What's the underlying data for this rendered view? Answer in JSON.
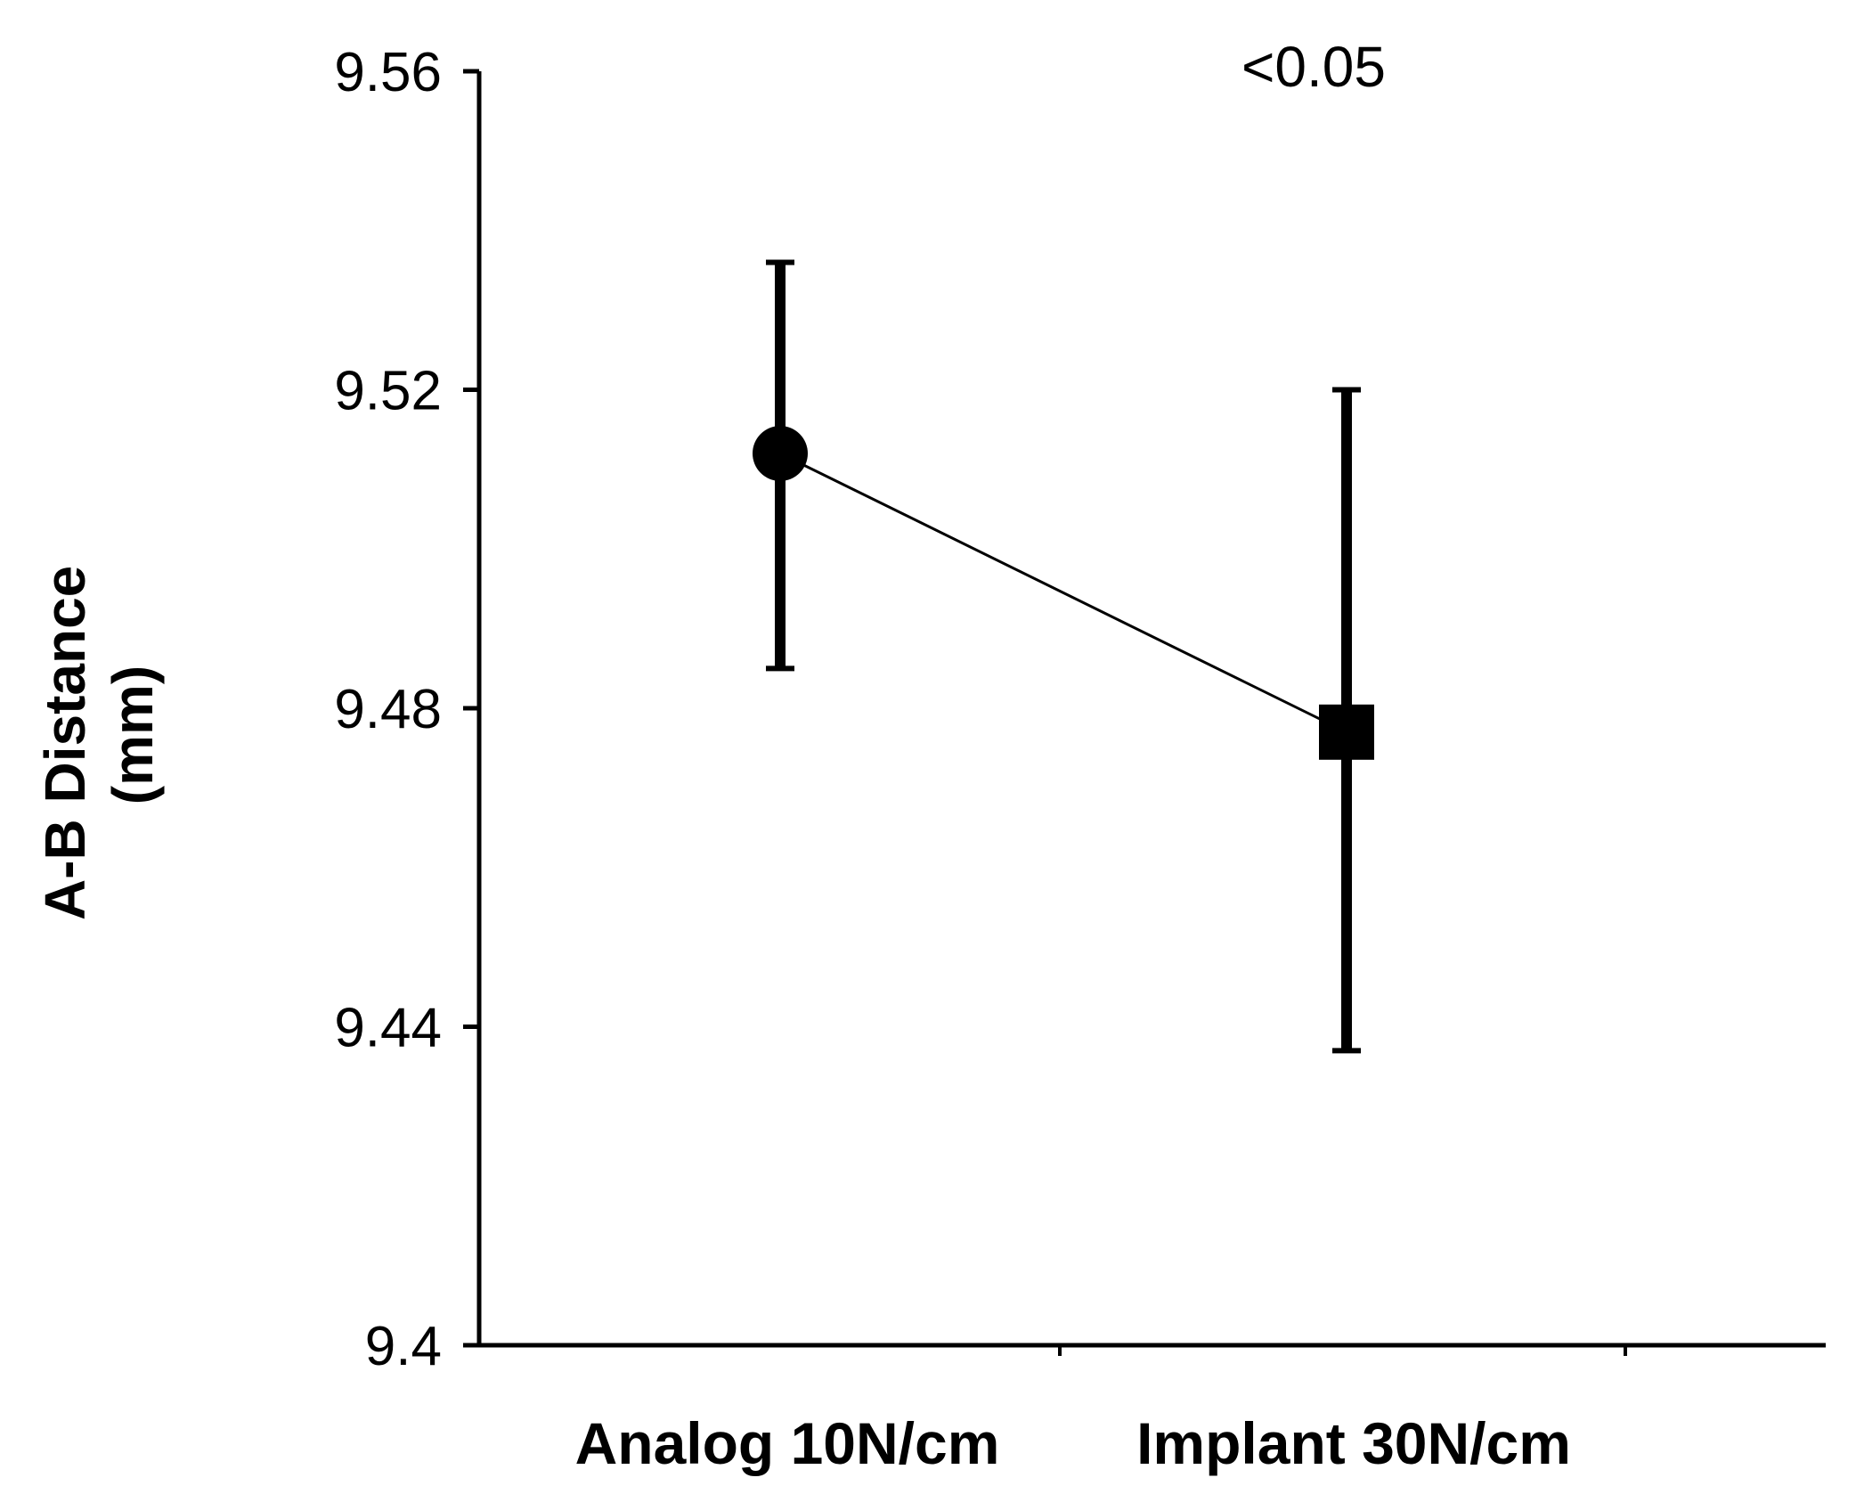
{
  "chart_data": {
    "type": "scatter",
    "title": "",
    "xlabel": "",
    "ylabel_lines": [
      "A-B Distance",
      "(mm)"
    ],
    "categories": [
      "Analog 10N/cm",
      "Implant 30N/cm"
    ],
    "ylim": [
      9.4,
      9.56
    ],
    "yticks": [
      "9.56",
      "9.52",
      "9.48",
      "9.44",
      "9.4"
    ],
    "series": [
      {
        "name": "A-B Distance",
        "values": [
          9.512,
          9.477
        ],
        "error_upper": [
          9.536,
          9.52
        ],
        "error_lower": [
          9.485,
          9.437
        ],
        "markers": [
          "circle",
          "square"
        ]
      }
    ],
    "annotation": "<0.05",
    "grid": false,
    "legend": "none"
  }
}
